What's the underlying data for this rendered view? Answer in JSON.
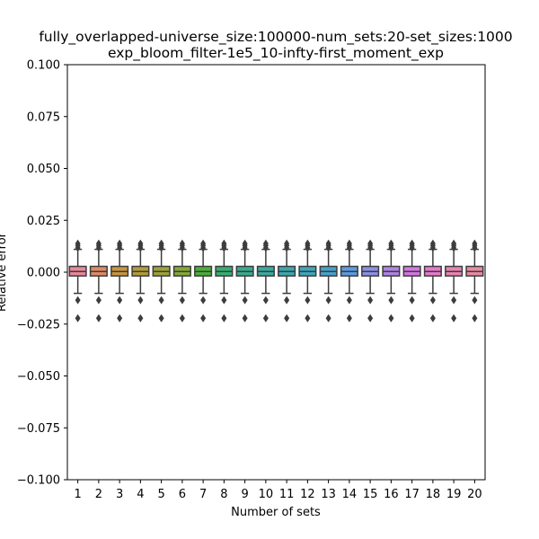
{
  "chart_data": {
    "type": "box",
    "title_lines": [
      "fully_overlapped-universe_size:100000-num_sets:20-set_sizes:1000",
      "exp_bloom_filter-1e5_10-infty-first_moment_exp"
    ],
    "xlabel": "Number of sets",
    "ylabel": "Relative error",
    "ylim": [
      -0.1,
      0.1
    ],
    "yticks": [
      -0.1,
      -0.075,
      -0.05,
      -0.025,
      0.0,
      0.025,
      0.05,
      0.075,
      0.1
    ],
    "ytick_labels": [
      "−0.100",
      "−0.075",
      "−0.050",
      "−0.025",
      "0.000",
      "0.025",
      "0.050",
      "0.075",
      "0.100"
    ],
    "categories": [
      "1",
      "2",
      "3",
      "4",
      "5",
      "6",
      "7",
      "8",
      "9",
      "10",
      "11",
      "12",
      "13",
      "14",
      "15",
      "16",
      "17",
      "18",
      "19",
      "20"
    ],
    "colors": [
      "#e8889a",
      "#df8b66",
      "#c79540",
      "#b29b3a",
      "#9ea13a",
      "#83a838",
      "#4bae3a",
      "#36ad74",
      "#38ab8f",
      "#3aa99e",
      "#3ca7ac",
      "#3ea6ba",
      "#45a2cb",
      "#5d9be0",
      "#8c90e5",
      "#b083e4",
      "#d377e1",
      "#e679cb",
      "#e883b4",
      "#e88ba0"
    ],
    "boxes": {
      "q1": -0.0018,
      "median": 0.0003,
      "q3": 0.0028,
      "whisker_low": -0.0102,
      "whisker_high": 0.011,
      "outliers": [
        0.0117,
        0.0128,
        0.0138,
        -0.0135,
        -0.0222
      ]
    },
    "grid": false,
    "legend": "none"
  }
}
